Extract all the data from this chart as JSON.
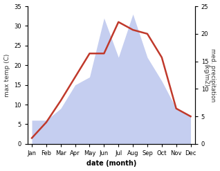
{
  "months": [
    "Jan",
    "Feb",
    "Mar",
    "Apr",
    "May",
    "Jun",
    "Jul",
    "Aug",
    "Sep",
    "Oct",
    "Nov",
    "Dec"
  ],
  "month_indices": [
    0,
    1,
    2,
    3,
    4,
    5,
    6,
    7,
    8,
    9,
    10,
    11
  ],
  "temperature": [
    1.5,
    5.5,
    11,
    17,
    23,
    23,
    31,
    29,
    28,
    22,
    9,
    7
  ],
  "precipitation_left_scale": [
    6,
    6,
    9,
    15,
    17,
    32,
    22,
    33,
    22,
    16,
    9,
    7
  ],
  "temp_ylim": [
    0,
    35
  ],
  "precip_ylim": [
    0,
    25
  ],
  "left_yticks": [
    0,
    5,
    10,
    15,
    20,
    25,
    30,
    35
  ],
  "right_yticks": [
    0,
    5,
    10,
    15,
    20,
    25
  ],
  "temp_color": "#c0392b",
  "precip_fill_color": "#c5cef0",
  "precip_edge_color": "#b0bceb",
  "xlabel": "date (month)",
  "ylabel_left": "max temp (C)",
  "ylabel_right": "med. precipitation\n(kg/m2)",
  "bg_color": "#ffffff",
  "line_width": 1.8,
  "scale_factor": 0.7143
}
